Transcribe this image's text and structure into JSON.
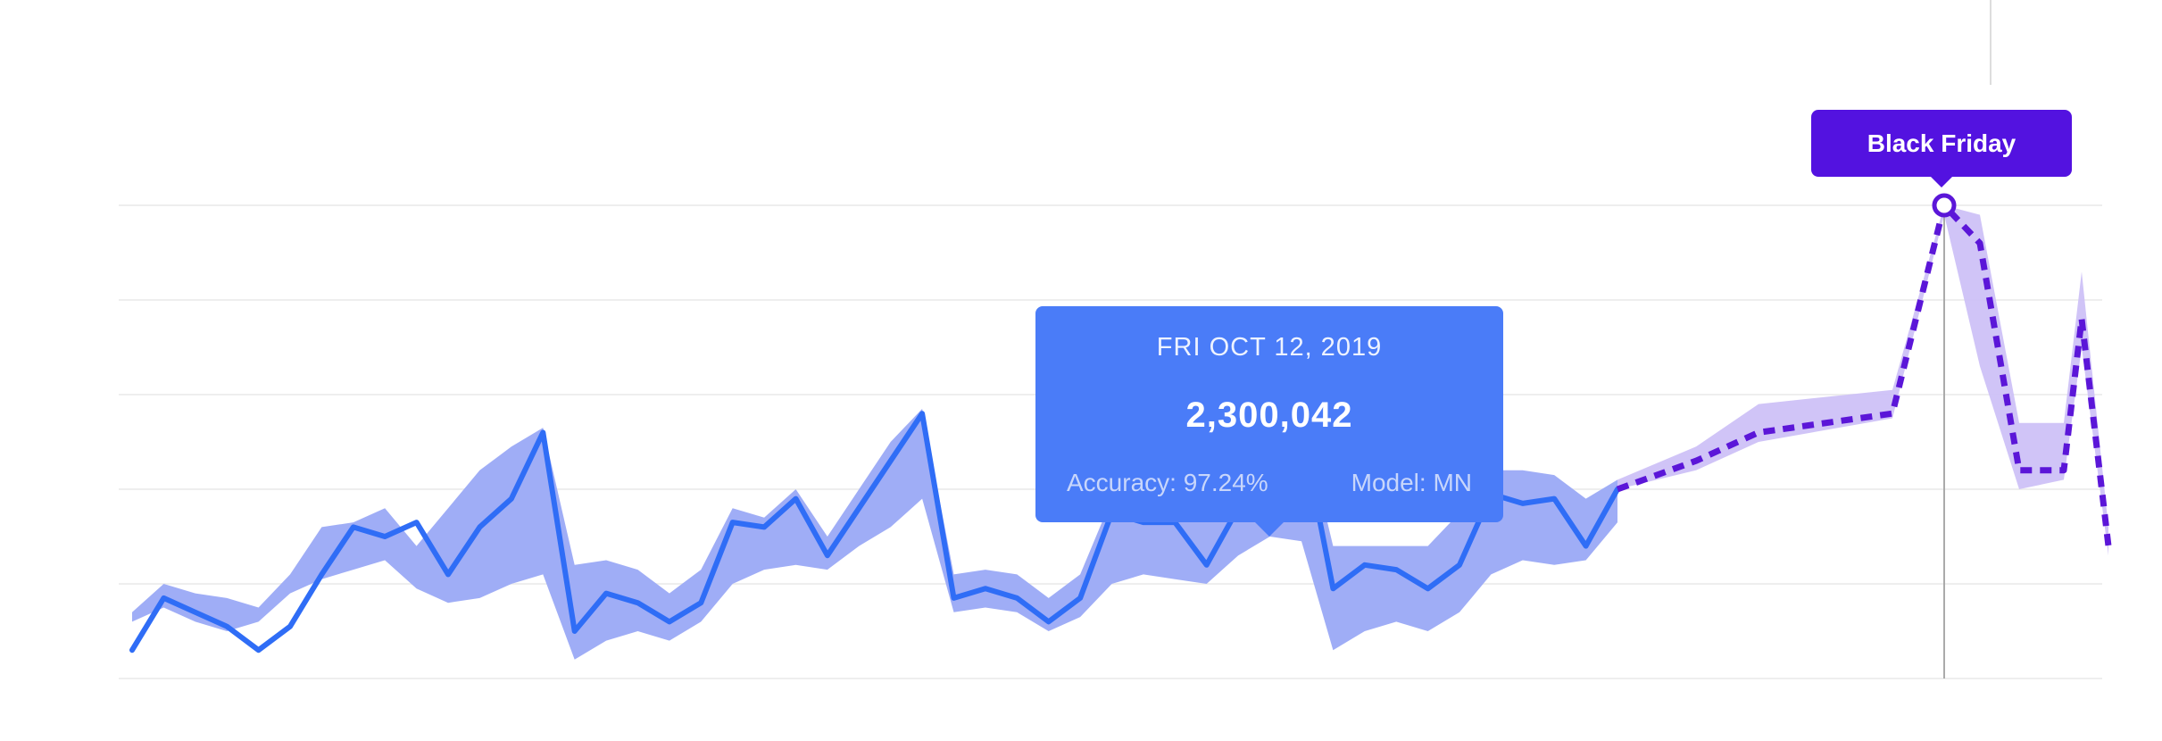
{
  "chart_data": {
    "type": "line",
    "title": "",
    "xlabel": "",
    "ylabel": "",
    "grid": true,
    "colors": {
      "actual_line": "#2f6df6",
      "actual_band": "#9aa9f5",
      "forecast_line": "#5b16d8",
      "forecast_band": "#cbbef6",
      "tooltip_bg": "#4a7cf8",
      "event_bg": "#5312e0",
      "gridline": "#eeeeee",
      "marker_line": "#aaaaaa"
    },
    "series": [
      {
        "style": "solid",
        "values": [
          0.3,
          0.85,
          0.7,
          0.55,
          0.3,
          0.55,
          1.1,
          1.6,
          1.5,
          1.65,
          1.1,
          1.6,
          1.9,
          2.6,
          0.5,
          0.9,
          0.8,
          0.6,
          0.8,
          1.65,
          1.6,
          1.9,
          1.3,
          1.8,
          2.3,
          2.8,
          0.85,
          0.95,
          0.85,
          0.6,
          0.85,
          1.75,
          1.65,
          1.65,
          1.2,
          1.8,
          2.3,
          2.65,
          0.95,
          1.2,
          1.15,
          0.95,
          1.2,
          1.95,
          1.85,
          1.9,
          1.4,
          2.0
        ],
        "band_low": [
          0.6,
          0.75,
          0.6,
          0.5,
          0.6,
          0.9,
          1.05,
          1.15,
          1.25,
          0.95,
          0.8,
          0.85,
          1.0,
          1.1,
          0.2,
          0.4,
          0.5,
          0.4,
          0.6,
          1.0,
          1.15,
          1.2,
          1.15,
          1.4,
          1.6,
          1.9,
          0.7,
          0.75,
          0.7,
          0.5,
          0.65,
          1.0,
          1.1,
          1.05,
          1.0,
          1.3,
          1.5,
          1.45,
          0.3,
          0.5,
          0.6,
          0.5,
          0.7,
          1.1,
          1.25,
          1.2,
          1.25,
          1.65
        ],
        "band_high": [
          0.7,
          1.0,
          0.9,
          0.85,
          0.75,
          1.1,
          1.6,
          1.65,
          1.8,
          1.4,
          1.8,
          2.2,
          2.45,
          2.65,
          1.2,
          1.25,
          1.15,
          0.9,
          1.15,
          1.8,
          1.7,
          2.0,
          1.5,
          2.0,
          2.5,
          2.85,
          1.1,
          1.15,
          1.1,
          0.85,
          1.1,
          1.9,
          1.8,
          1.85,
          1.7,
          2.1,
          2.55,
          2.8,
          1.4,
          1.4,
          1.4,
          1.4,
          1.75,
          2.2,
          2.2,
          2.15,
          1.9,
          2.1
        ]
      },
      {
        "style": "dashed",
        "values": [
          2.0,
          2.3,
          2.6,
          2.8,
          5.0,
          4.6,
          2.2,
          2.2,
          3.8,
          1.4
        ],
        "band_low": [
          2.0,
          2.2,
          2.5,
          2.75,
          4.9,
          3.3,
          2.0,
          2.1,
          3.5,
          1.3
        ],
        "band_high": [
          2.1,
          2.45,
          2.9,
          3.05,
          5.0,
          4.9,
          2.7,
          2.7,
          4.3,
          1.6
        ]
      }
    ],
    "y_range": [
      0,
      5
    ]
  },
  "tooltip": {
    "date": "FRI OCT 12, 2019",
    "value": "2,300,042",
    "accuracy": "Accuracy: 97.24%",
    "model": "Model: MN"
  },
  "event": {
    "label": "Black Friday"
  }
}
